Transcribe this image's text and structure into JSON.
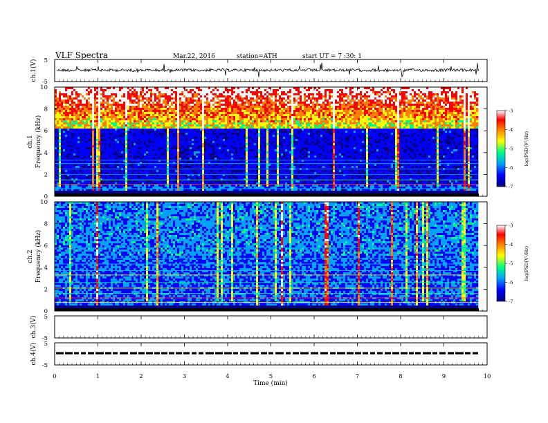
{
  "header": {
    "title": "VLF  Spectra",
    "date": "Mar.22, 2016",
    "station": "station=ATH",
    "start": "start  UT  =   7 :30: 1"
  },
  "colors": {
    "background": "#ffffff",
    "axes": "#000000",
    "colormap": [
      "#000080",
      "#0000ff",
      "#00a0ff",
      "#00ff80",
      "#ffff00",
      "#ff8000",
      "#ff0000",
      "#ffffff"
    ]
  },
  "chart_data": [
    {
      "type": "line",
      "name": "ch1-waveform",
      "ylabel": "ch.1(V)",
      "ylim": [
        -5,
        5
      ],
      "ytick_labels": [
        "5",
        "-5"
      ],
      "description_level": 0.5
    },
    {
      "type": "heatmap",
      "name": "ch1-spectrogram",
      "ylabel": "Frequency  (kHz)",
      "channel_label": "ch.1",
      "ylim": [
        0,
        10
      ],
      "ytick_labels": [
        "0",
        "2",
        "4",
        "6",
        "8",
        "10"
      ],
      "colorbar": {
        "label": "log(PSD(V²/Hz)",
        "range": [
          -7,
          -3
        ],
        "tick_labels": [
          "-3",
          "-4",
          "-5",
          "-6",
          "-7"
        ]
      }
    },
    {
      "type": "heatmap",
      "name": "ch2-spectrogram",
      "ylabel": "Frequency  (kHz)",
      "channel_label": "ch.2",
      "ylim": [
        0,
        10
      ],
      "ytick_labels": [
        "0",
        "2",
        "4",
        "6",
        "8",
        "10"
      ],
      "colorbar": {
        "label": "log(PSD(V²/Hz)",
        "range": [
          -7,
          -3
        ],
        "tick_labels": [
          "-3",
          "-4",
          "-5",
          "-6",
          "-7"
        ]
      }
    },
    {
      "type": "line",
      "name": "ch3-waveform",
      "ylabel": "ch.3(V)",
      "ylim": [
        -5,
        5
      ],
      "ytick_labels": [
        "5",
        "-5"
      ]
    },
    {
      "type": "line",
      "name": "ch4-waveform",
      "ylabel": "ch.4(V)",
      "ylim": [
        -5,
        5
      ],
      "ytick_labels": [
        "5",
        "-5"
      ],
      "description_level": 0
    }
  ],
  "xaxis": {
    "label": "Time  (min)",
    "xlim": [
      0,
      10
    ],
    "tick_labels": [
      "0",
      "1",
      "2",
      "3",
      "4",
      "5",
      "6",
      "7",
      "8",
      "9",
      "10"
    ]
  }
}
